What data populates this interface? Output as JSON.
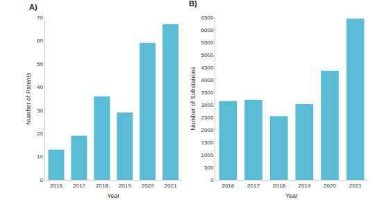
{
  "chart_data": [
    {
      "type": "bar",
      "title": "A)",
      "x_label": "Year",
      "y_label": "Number of Patents",
      "categories": [
        "2016",
        "2017",
        "2018",
        "2019",
        "2020",
        "2021"
      ],
      "values": [
        13,
        19,
        36,
        29,
        59,
        67
      ],
      "color": "#5bbcd8",
      "ylim": [
        0,
        70
      ],
      "yticks": [
        0,
        10,
        20,
        30,
        40,
        50,
        60,
        70
      ],
      "grid": false
    },
    {
      "type": "bar",
      "title": "B)",
      "x_label": "Year",
      "y_label": "Number of Substances",
      "categories": [
        "2016",
        "2017",
        "2018",
        "2019",
        "2020",
        "2021"
      ],
      "values": [
        3150,
        3200,
        2550,
        3030,
        4370,
        6450
      ],
      "color": "#5bbcd8",
      "ylim": [
        0,
        6500
      ],
      "yticks": [
        0,
        500,
        1000,
        1500,
        2000,
        2500,
        3000,
        3500,
        4000,
        4500,
        5000,
        5500,
        6000,
        6500
      ],
      "grid": false
    }
  ]
}
